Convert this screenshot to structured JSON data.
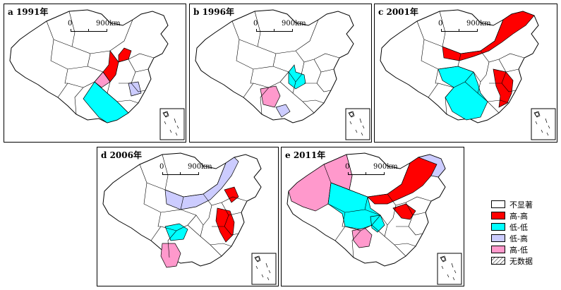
{
  "panels": [
    {
      "label": "a 1991年",
      "scale_zero": "0",
      "scale_dist": "900km"
    },
    {
      "label": "b 1996年",
      "scale_zero": "0",
      "scale_dist": "900km"
    },
    {
      "label": "c 2001年",
      "scale_zero": "0",
      "scale_dist": "900km"
    },
    {
      "label": "d 2006年",
      "scale_zero": "0",
      "scale_dist": "900km"
    },
    {
      "label": "e 2011年",
      "scale_zero": "0",
      "scale_dist": "900km"
    }
  ],
  "legend": {
    "items": [
      {
        "label": "不显著",
        "color": "#ffffff"
      },
      {
        "label": "高-高",
        "color": "#ff0000"
      },
      {
        "label": "低-低",
        "color": "#00ffff"
      },
      {
        "label": "低-高",
        "color": "#ccccff"
      },
      {
        "label": "高-低",
        "color": "#ff99cc"
      },
      {
        "label": "无数据",
        "color": "hatch"
      }
    ]
  },
  "colors": {
    "not_significant": "#ffffff",
    "high_high": "#ff0000",
    "low_low": "#00ffff",
    "low_high": "#ccccff",
    "high_low": "#ff99cc"
  }
}
